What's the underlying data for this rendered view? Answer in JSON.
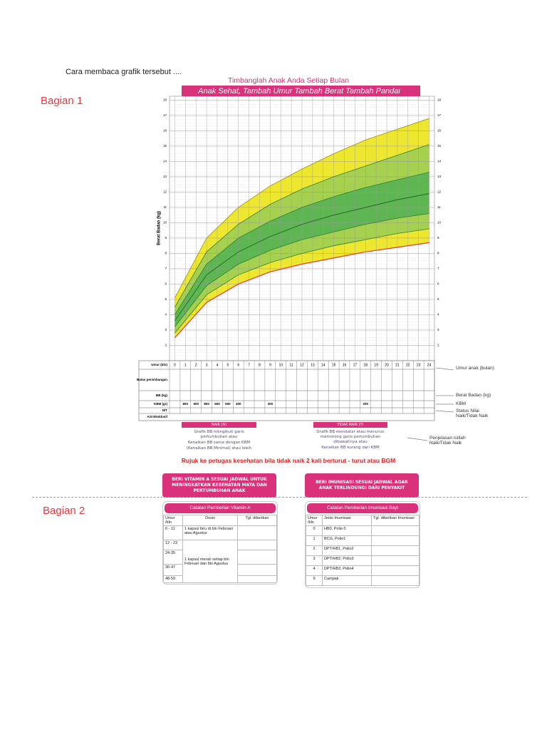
{
  "intro": "Cara membaca grafik tersebut ....",
  "section1": {
    "label": "Bagian 1"
  },
  "chart_data": {
    "type": "line",
    "title": "Timbanglah Anak Anda Setiap Bulan",
    "subtitle": "Anak Sehat, Tambah Umur Tambah Berat Tambah Pandai",
    "y_label": "Berat Badan (kg)",
    "x": [
      0,
      3,
      6,
      9,
      12,
      15,
      18,
      21,
      24
    ],
    "series": [
      {
        "color": "#e53935",
        "values": [
          2.5,
          4.8,
          6.0,
          6.8,
          7.3,
          7.7,
          8.1,
          8.4,
          8.7
        ]
      },
      {
        "color": "#2e7d32",
        "values": [
          2.8,
          5.3,
          6.6,
          7.4,
          8.0,
          8.5,
          8.9,
          9.3,
          9.6
        ]
      },
      {
        "color": "#2e7d32",
        "values": [
          3.2,
          5.9,
          7.3,
          8.2,
          8.9,
          9.4,
          9.9,
          10.3,
          10.6
        ]
      },
      {
        "color": "#1b5e20",
        "values": [
          3.6,
          6.6,
          8.1,
          9.1,
          9.9,
          10.5,
          11.0,
          11.5,
          11.9
        ]
      },
      {
        "color": "#2e7d32",
        "values": [
          4.0,
          7.3,
          9.0,
          10.1,
          11.0,
          11.7,
          12.3,
          12.8,
          13.3
        ]
      },
      {
        "color": "#2e7d32",
        "values": [
          4.5,
          8.1,
          9.9,
          11.2,
          12.2,
          13.0,
          13.7,
          14.4,
          15.1
        ]
      },
      {
        "color": "#9e9000",
        "values": [
          5.1,
          9.0,
          11.0,
          12.4,
          13.5,
          14.5,
          15.4,
          16.1,
          16.8
        ]
      }
    ],
    "band_colors": [
      "#ece41a",
      "#9ccc3c",
      "#4cae3f",
      "#4cae3f",
      "#9ccc3c",
      "#ece41a"
    ],
    "xlim": [
      -0.5,
      24.5
    ],
    "ylim": [
      1,
      18.25
    ],
    "xticks": [
      0,
      1,
      2,
      3,
      4,
      5,
      6,
      7,
      8,
      9,
      10,
      11,
      12,
      13,
      14,
      15,
      16,
      17,
      18,
      19,
      20,
      21,
      22,
      23,
      24
    ],
    "yticks": [
      2,
      3,
      4,
      5,
      6,
      7,
      8,
      9,
      10,
      11,
      12,
      13,
      14,
      15,
      16,
      17,
      18
    ],
    "grid": true
  },
  "weighing_table": {
    "rows": [
      "Umur (bln)",
      "Bulan penimbangan",
      "BB (kg)",
      "KBM (gr)",
      "N/T",
      "ASI Eksklusif"
    ],
    "kbm": [
      800,
      900,
      800,
      600,
      500,
      400,
      300,
      200
    ]
  },
  "side_labels": [
    "Umur anak (bulan)",
    "Berat Badan (kg)",
    "KBM",
    "Status Nilai Naik/Tidak Naik",
    "Penjelasan istilah Naik/Tidak Naik"
  ],
  "naik": {
    "title": "NAIK (N)",
    "lines": [
      "Grafik BB mengikuti garis pertumbuhan atau",
      "Kenaikan BB sama dengan KBM",
      "(Kenaikan BB Minimal) atau lebih"
    ]
  },
  "tidak_naik": {
    "title": "TIDAK NAIK (T)",
    "lines": [
      "Grafik BB mendatar atau menurun memotong garis pertumbuhan dibawahnya atau",
      "Kenaikan BB kurang dari KBM"
    ]
  },
  "referral": "Rujuk ke petugas kesehatan bila tidak naik 2 kali berturut - turut atau BGM",
  "vitamin_banner": "BERI VITAMIN A SESUAI JADWAL UNTUK MENINGKATKAN KESEHATAN MATA DAN PERTUMBUHAN ANAK",
  "immunization_banner": "BERI IMUNISASI SESUAI JADWAL AGAR ANAK TERLINDUNGI DARI PENYAKIT",
  "section2": {
    "label": "Bagian 2"
  },
  "vitamin_table": {
    "title": "Catatan Pemberian Vitamin A",
    "headers": [
      "Umur /bln",
      "Dosis",
      "Tgl. diberikan"
    ],
    "rows": [
      [
        "6 - 11",
        "1 kapsul biru di bln Februari atau Agustus"
      ],
      [
        "12 - 23"
      ],
      [
        "24-35"
      ],
      [
        "36-47"
      ],
      [
        "48-59"
      ]
    ],
    "merged_dose": "1 kapsul merah setiap bln Februari dan bln Agustus"
  },
  "immunization_table": {
    "title": "Catatan Pemberian Imunisasi Bayi",
    "headers": [
      "Umur /bln",
      "Jenis Imunisasi",
      "Tgl. diberikan Imunisasi"
    ],
    "rows": [
      [
        0,
        "HB0, Polio 0"
      ],
      [
        1,
        "BCG, Polio1"
      ],
      [
        2,
        "DPT/HB1, Polio2"
      ],
      [
        3,
        "DPT/HB2, Polio3"
      ],
      [
        4,
        "DPT/HB3, Polio4"
      ],
      [
        9,
        "Campak"
      ]
    ]
  }
}
